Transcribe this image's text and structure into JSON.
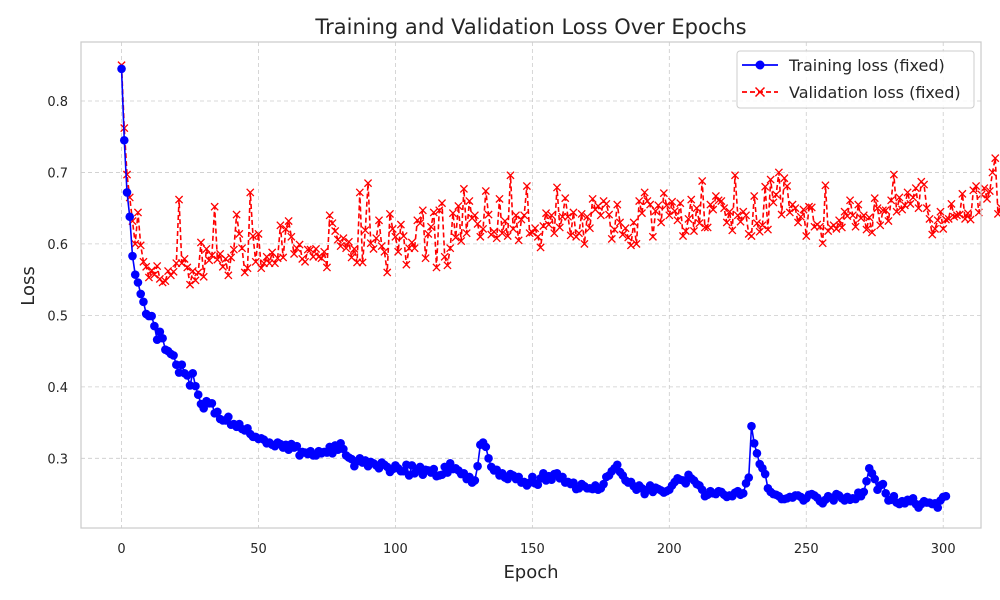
{
  "chart_data": {
    "type": "line",
    "title": "Training and Validation Loss Over Epochs",
    "xlabel": "Epoch",
    "ylabel": "Loss",
    "xlim": [
      -14.8,
      313.8
    ],
    "ylim": [
      0.2025,
      0.8825
    ],
    "xticks": [
      0,
      50,
      100,
      150,
      200,
      250,
      300
    ],
    "yticks": [
      0.3,
      0.4,
      0.5,
      0.6,
      0.7,
      0.8
    ],
    "grid": true,
    "legend_position": "top-right",
    "series": [
      {
        "name": "Training loss (fixed)",
        "color": "#0000ff",
        "marker": "circle",
        "linestyle": "solid",
        "values": [
          0.845,
          0.745,
          0.672,
          0.638,
          0.583,
          0.557,
          0.546,
          0.53,
          0.519,
          0.502,
          0.499,
          0.499,
          0.485,
          0.466,
          0.477,
          0.468,
          0.452,
          0.45,
          0.446,
          0.444,
          0.431,
          0.42,
          0.431,
          0.419,
          0.416,
          0.402,
          0.419,
          0.401,
          0.389,
          0.376,
          0.37,
          0.38,
          0.377,
          0.377,
          0.363,
          0.365,
          0.355,
          0.353,
          0.353,
          0.358,
          0.347,
          0.348,
          0.344,
          0.348,
          0.341,
          0.339,
          0.342,
          0.334,
          0.33,
          0.33,
          0.327,
          0.328,
          0.326,
          0.321,
          0.322,
          0.319,
          0.317,
          0.322,
          0.32,
          0.315,
          0.319,
          0.312,
          0.32,
          0.315,
          0.317,
          0.304,
          0.309,
          0.308,
          0.306,
          0.31,
          0.304,
          0.304,
          0.31,
          0.307,
          0.309,
          0.308,
          0.316,
          0.307,
          0.318,
          0.312,
          0.321,
          0.313,
          0.304,
          0.301,
          0.299,
          0.289,
          0.296,
          0.3,
          0.294,
          0.297,
          0.289,
          0.295,
          0.293,
          0.29,
          0.286,
          0.294,
          0.291,
          0.288,
          0.281,
          0.285,
          0.29,
          0.286,
          0.282,
          0.282,
          0.291,
          0.276,
          0.29,
          0.279,
          0.284,
          0.288,
          0.277,
          0.284,
          0.283,
          0.28,
          0.285,
          0.275,
          0.276,
          0.277,
          0.288,
          0.28,
          0.293,
          0.285,
          0.286,
          0.283,
          0.278,
          0.279,
          0.271,
          0.274,
          0.266,
          0.269,
          0.289,
          0.319,
          0.322,
          0.316,
          0.3,
          0.288,
          0.283,
          0.284,
          0.276,
          0.279,
          0.273,
          0.271,
          0.278,
          0.276,
          0.271,
          0.274,
          0.266,
          0.267,
          0.262,
          0.266,
          0.274,
          0.265,
          0.263,
          0.272,
          0.279,
          0.269,
          0.275,
          0.27,
          0.278,
          0.279,
          0.272,
          0.274,
          0.266,
          0.267,
          0.264,
          0.266,
          0.257,
          0.258,
          0.264,
          0.261,
          0.258,
          0.258,
          0.257,
          0.262,
          0.256,
          0.258,
          0.264,
          0.274,
          0.276,
          0.282,
          0.286,
          0.291,
          0.281,
          0.276,
          0.269,
          0.266,
          0.267,
          0.261,
          0.256,
          0.262,
          0.258,
          0.25,
          0.256,
          0.262,
          0.253,
          0.259,
          0.257,
          0.255,
          0.252,
          0.254,
          0.256,
          0.262,
          0.267,
          0.272,
          0.27,
          0.269,
          0.265,
          0.277,
          0.272,
          0.269,
          0.264,
          0.262,
          0.256,
          0.247,
          0.249,
          0.254,
          0.251,
          0.25,
          0.254,
          0.253,
          0.249,
          0.246,
          0.248,
          0.247,
          0.252,
          0.254,
          0.249,
          0.251,
          0.265,
          0.273,
          0.345,
          0.321,
          0.307,
          0.292,
          0.286,
          0.278,
          0.258,
          0.253,
          0.25,
          0.249,
          0.247,
          0.243,
          0.243,
          0.244,
          0.246,
          0.245,
          0.248,
          0.248,
          0.246,
          0.241,
          0.244,
          0.249,
          0.25,
          0.248,
          0.245,
          0.24,
          0.237,
          0.242,
          0.247,
          0.245,
          0.241,
          0.25,
          0.248,
          0.244,
          0.241,
          0.246,
          0.242,
          0.244,
          0.243,
          0.252,
          0.247,
          0.253,
          0.268,
          0.286,
          0.279,
          0.271,
          0.256,
          0.262,
          0.264,
          0.251,
          0.241,
          0.242,
          0.247,
          0.238,
          0.236,
          0.24,
          0.237,
          0.242,
          0.24,
          0.244,
          0.236,
          0.231,
          0.236,
          0.24,
          0.238,
          0.238,
          0.236,
          0.237,
          0.231,
          0.241,
          0.246,
          0.247
        ]
      },
      {
        "name": "Validation loss (fixed)",
        "color": "#ff0000",
        "marker": "x",
        "linestyle": "dashed",
        "values": [
          0.85,
          0.762,
          0.697,
          0.665,
          0.632,
          0.6,
          0.644,
          0.598,
          0.575,
          0.568,
          0.553,
          0.563,
          0.557,
          0.569,
          0.551,
          0.546,
          0.548,
          0.562,
          0.556,
          0.561,
          0.573,
          0.662,
          0.573,
          0.579,
          0.567,
          0.543,
          0.562,
          0.549,
          0.56,
          0.602,
          0.554,
          0.593,
          0.577,
          0.584,
          0.652,
          0.578,
          0.586,
          0.568,
          0.579,
          0.556,
          0.581,
          0.592,
          0.641,
          0.614,
          0.594,
          0.56,
          0.566,
          0.672,
          0.611,
          0.575,
          0.614,
          0.566,
          0.573,
          0.582,
          0.573,
          0.588,
          0.573,
          0.58,
          0.626,
          0.581,
          0.621,
          0.632,
          0.61,
          0.586,
          0.594,
          0.599,
          0.579,
          0.575,
          0.592,
          0.592,
          0.582,
          0.593,
          0.582,
          0.58,
          0.589,
          0.567,
          0.64,
          0.629,
          0.618,
          0.606,
          0.597,
          0.608,
          0.594,
          0.603,
          0.581,
          0.593,
          0.574,
          0.672,
          0.574,
          0.619,
          0.685,
          0.601,
          0.593,
          0.608,
          0.633,
          0.597,
          0.589,
          0.56,
          0.642,
          0.621,
          0.61,
          0.589,
          0.627,
          0.611,
          0.571,
          0.594,
          0.602,
          0.594,
          0.633,
          0.629,
          0.647,
          0.58,
          0.614,
          0.624,
          0.644,
          0.567,
          0.647,
          0.657,
          0.582,
          0.57,
          0.594,
          0.643,
          0.609,
          0.653,
          0.604,
          0.677,
          0.615,
          0.66,
          0.636,
          0.64,
          0.628,
          0.61,
          0.621,
          0.674,
          0.641,
          0.613,
          0.617,
          0.608,
          0.663,
          0.615,
          0.632,
          0.611,
          0.696,
          0.621,
          0.64,
          0.605,
          0.634,
          0.64,
          0.681,
          0.615,
          0.616,
          0.622,
          0.61,
          0.595,
          0.625,
          0.643,
          0.627,
          0.64,
          0.615,
          0.679,
          0.623,
          0.638,
          0.664,
          0.638,
          0.612,
          0.644,
          0.61,
          0.615,
          0.642,
          0.6,
          0.638,
          0.622,
          0.663,
          0.648,
          0.653,
          0.64,
          0.66,
          0.656,
          0.641,
          0.607,
          0.62,
          0.655,
          0.63,
          0.613,
          0.622,
          0.609,
          0.598,
          0.63,
          0.6,
          0.66,
          0.643,
          0.672,
          0.66,
          0.655,
          0.61,
          0.646,
          0.654,
          0.63,
          0.671,
          0.654,
          0.64,
          0.659,
          0.646,
          0.633,
          0.657,
          0.611,
          0.618,
          0.635,
          0.662,
          0.618,
          0.65,
          0.629,
          0.688,
          0.623,
          0.623,
          0.655,
          0.648,
          0.667,
          0.661,
          0.66,
          0.65,
          0.63,
          0.645,
          0.619,
          0.696,
          0.64,
          0.631,
          0.645,
          0.64,
          0.614,
          0.611,
          0.667,
          0.629,
          0.617,
          0.626,
          0.68,
          0.62,
          0.69,
          0.658,
          0.669,
          0.7,
          0.641,
          0.692,
          0.681,
          0.644,
          0.655,
          0.65,
          0.63,
          0.638,
          0.648,
          0.611,
          0.652,
          0.651,
          0.624,
          0.627,
          0.624,
          0.601,
          0.682,
          0.618,
          0.623,
          0.626,
          0.621,
          0.633,
          0.623,
          0.645,
          0.639,
          0.661,
          0.64,
          0.624,
          0.655,
          0.636,
          0.64,
          0.62,
          0.637,
          0.616,
          0.664,
          0.65,
          0.626,
          0.647,
          0.647,
          0.632,
          0.661,
          0.697,
          0.645,
          0.665,
          0.648,
          0.654,
          0.672,
          0.656,
          0.665,
          0.678,
          0.65,
          0.687,
          0.683,
          0.65,
          0.635,
          0.613,
          0.621,
          0.633,
          0.645,
          0.621,
          0.634,
          0.635,
          0.656,
          0.638,
          0.64,
          0.641,
          0.67,
          0.635,
          0.643,
          0.634,
          0.675,
          0.681,
          0.644,
          0.669,
          0.678,
          0.663,
          0.674,
          0.7,
          0.72,
          0.642,
          0.651
        ]
      }
    ]
  }
}
